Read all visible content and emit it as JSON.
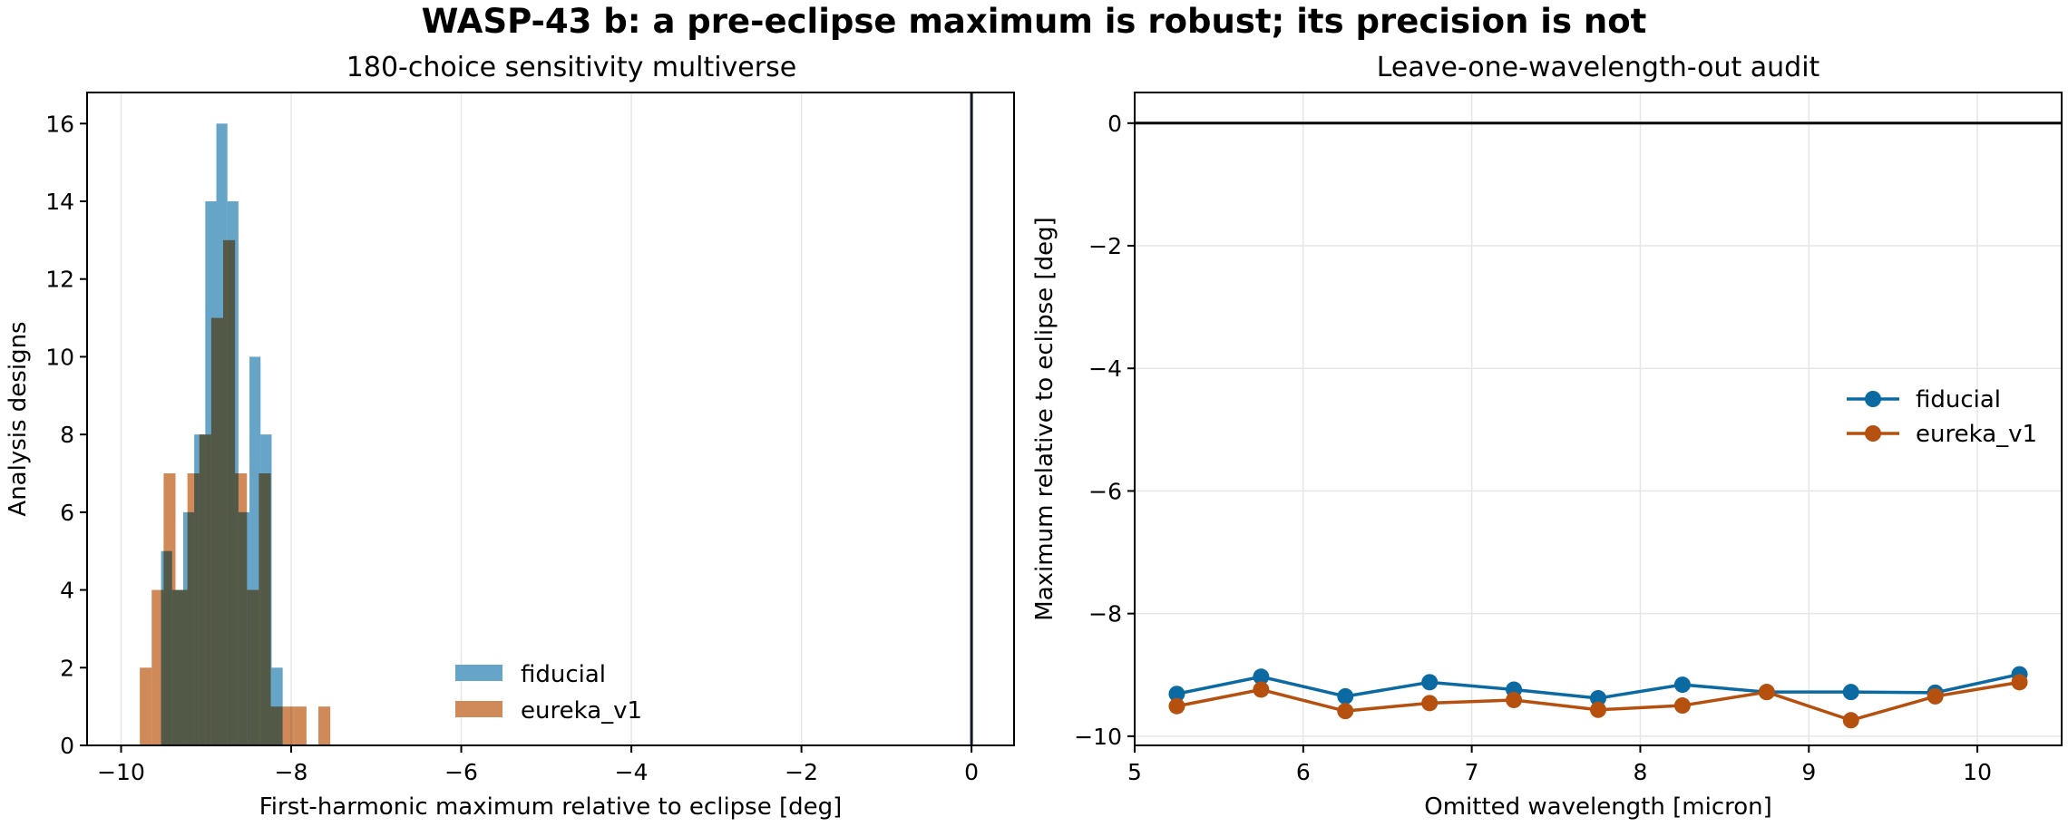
{
  "suptitle": "WASP-43 b: a pre-eclipse maximum is robust; its precision is not",
  "colors": {
    "fiducial": "#0b6aa2",
    "eureka_v1": "#b5500f",
    "fiducial_hist": "#66a4c8",
    "eureka_hist": "#d08a5a",
    "overlap_hist": "#8a6c4c"
  },
  "chart_data": [
    {
      "type": "bar",
      "subtype": "histogram",
      "title": "180-choice sensitivity multiverse",
      "xlabel": "First-harmonic maximum relative to eclipse [deg]",
      "ylabel": "Analysis designs",
      "xlim": [
        -10.4,
        0.5
      ],
      "ylim": [
        0,
        16.8
      ],
      "xticks": [
        -10,
        -8,
        -6,
        -4,
        -2,
        0
      ],
      "yticks": [
        0,
        2,
        4,
        6,
        8,
        10,
        12,
        14,
        16
      ],
      "grid": "x",
      "reference_line_x": 0,
      "legend": "lower-center",
      "series": [
        {
          "name": "fiducial",
          "bins": [
            [
              -9.53,
              -9.4,
              5
            ],
            [
              -9.4,
              -9.27,
              4
            ],
            [
              -9.27,
              -9.14,
              6
            ],
            [
              -9.14,
              -9.01,
              8
            ],
            [
              -9.01,
              -8.88,
              14
            ],
            [
              -8.88,
              -8.75,
              16
            ],
            [
              -8.75,
              -8.62,
              14
            ],
            [
              -8.62,
              -8.49,
              6
            ],
            [
              -8.49,
              -8.36,
              10
            ],
            [
              -8.36,
              -8.23,
              8
            ],
            [
              -8.23,
              -8.1,
              2
            ],
            [
              -8.1,
              -7.97,
              0
            ],
            [
              -7.97,
              -7.84,
              0
            ]
          ]
        },
        {
          "name": "eureka_v1",
          "bins": [
            [
              -9.78,
              -9.64,
              2
            ],
            [
              -9.64,
              -9.5,
              4
            ],
            [
              -9.5,
              -9.36,
              7
            ],
            [
              -9.36,
              -9.22,
              4
            ],
            [
              -9.22,
              -9.08,
              7
            ],
            [
              -9.08,
              -8.94,
              8
            ],
            [
              -8.94,
              -8.8,
              11
            ],
            [
              -8.8,
              -8.66,
              13
            ],
            [
              -8.66,
              -8.52,
              7
            ],
            [
              -8.52,
              -8.38,
              4
            ],
            [
              -8.38,
              -8.24,
              7
            ],
            [
              -8.24,
              -8.1,
              1
            ],
            [
              -8.1,
              -7.96,
              1
            ],
            [
              -7.96,
              -7.82,
              1
            ],
            [
              -7.82,
              -7.68,
              0
            ],
            [
              -7.68,
              -7.54,
              1
            ]
          ]
        }
      ]
    },
    {
      "type": "line",
      "title": "Leave-one-wavelength-out audit",
      "xlabel": "Omitted wavelength [micron]",
      "ylabel": "Maximum relative to eclipse [deg]",
      "xlim": [
        5,
        10.5
      ],
      "ylim": [
        -10.15,
        0.5
      ],
      "xticks": [
        5,
        6,
        7,
        8,
        9,
        10
      ],
      "yticks": [
        0,
        -2,
        -4,
        -6,
        -8,
        -10
      ],
      "grid": "both",
      "reference_line_y": 0,
      "legend": "center-right",
      "x": [
        5.25,
        5.75,
        6.25,
        6.75,
        7.25,
        7.75,
        8.25,
        8.75,
        9.25,
        9.75,
        10.25
      ],
      "series": [
        {
          "name": "fiducial",
          "values": [
            -9.31,
            -9.03,
            -9.35,
            -9.12,
            -9.24,
            -9.38,
            -9.16,
            -9.28,
            -9.28,
            -9.29,
            -8.99
          ]
        },
        {
          "name": "eureka_v1",
          "values": [
            -9.51,
            -9.24,
            -9.59,
            -9.46,
            -9.41,
            -9.57,
            -9.5,
            -9.28,
            -9.74,
            -9.35,
            -9.12
          ]
        }
      ]
    }
  ]
}
